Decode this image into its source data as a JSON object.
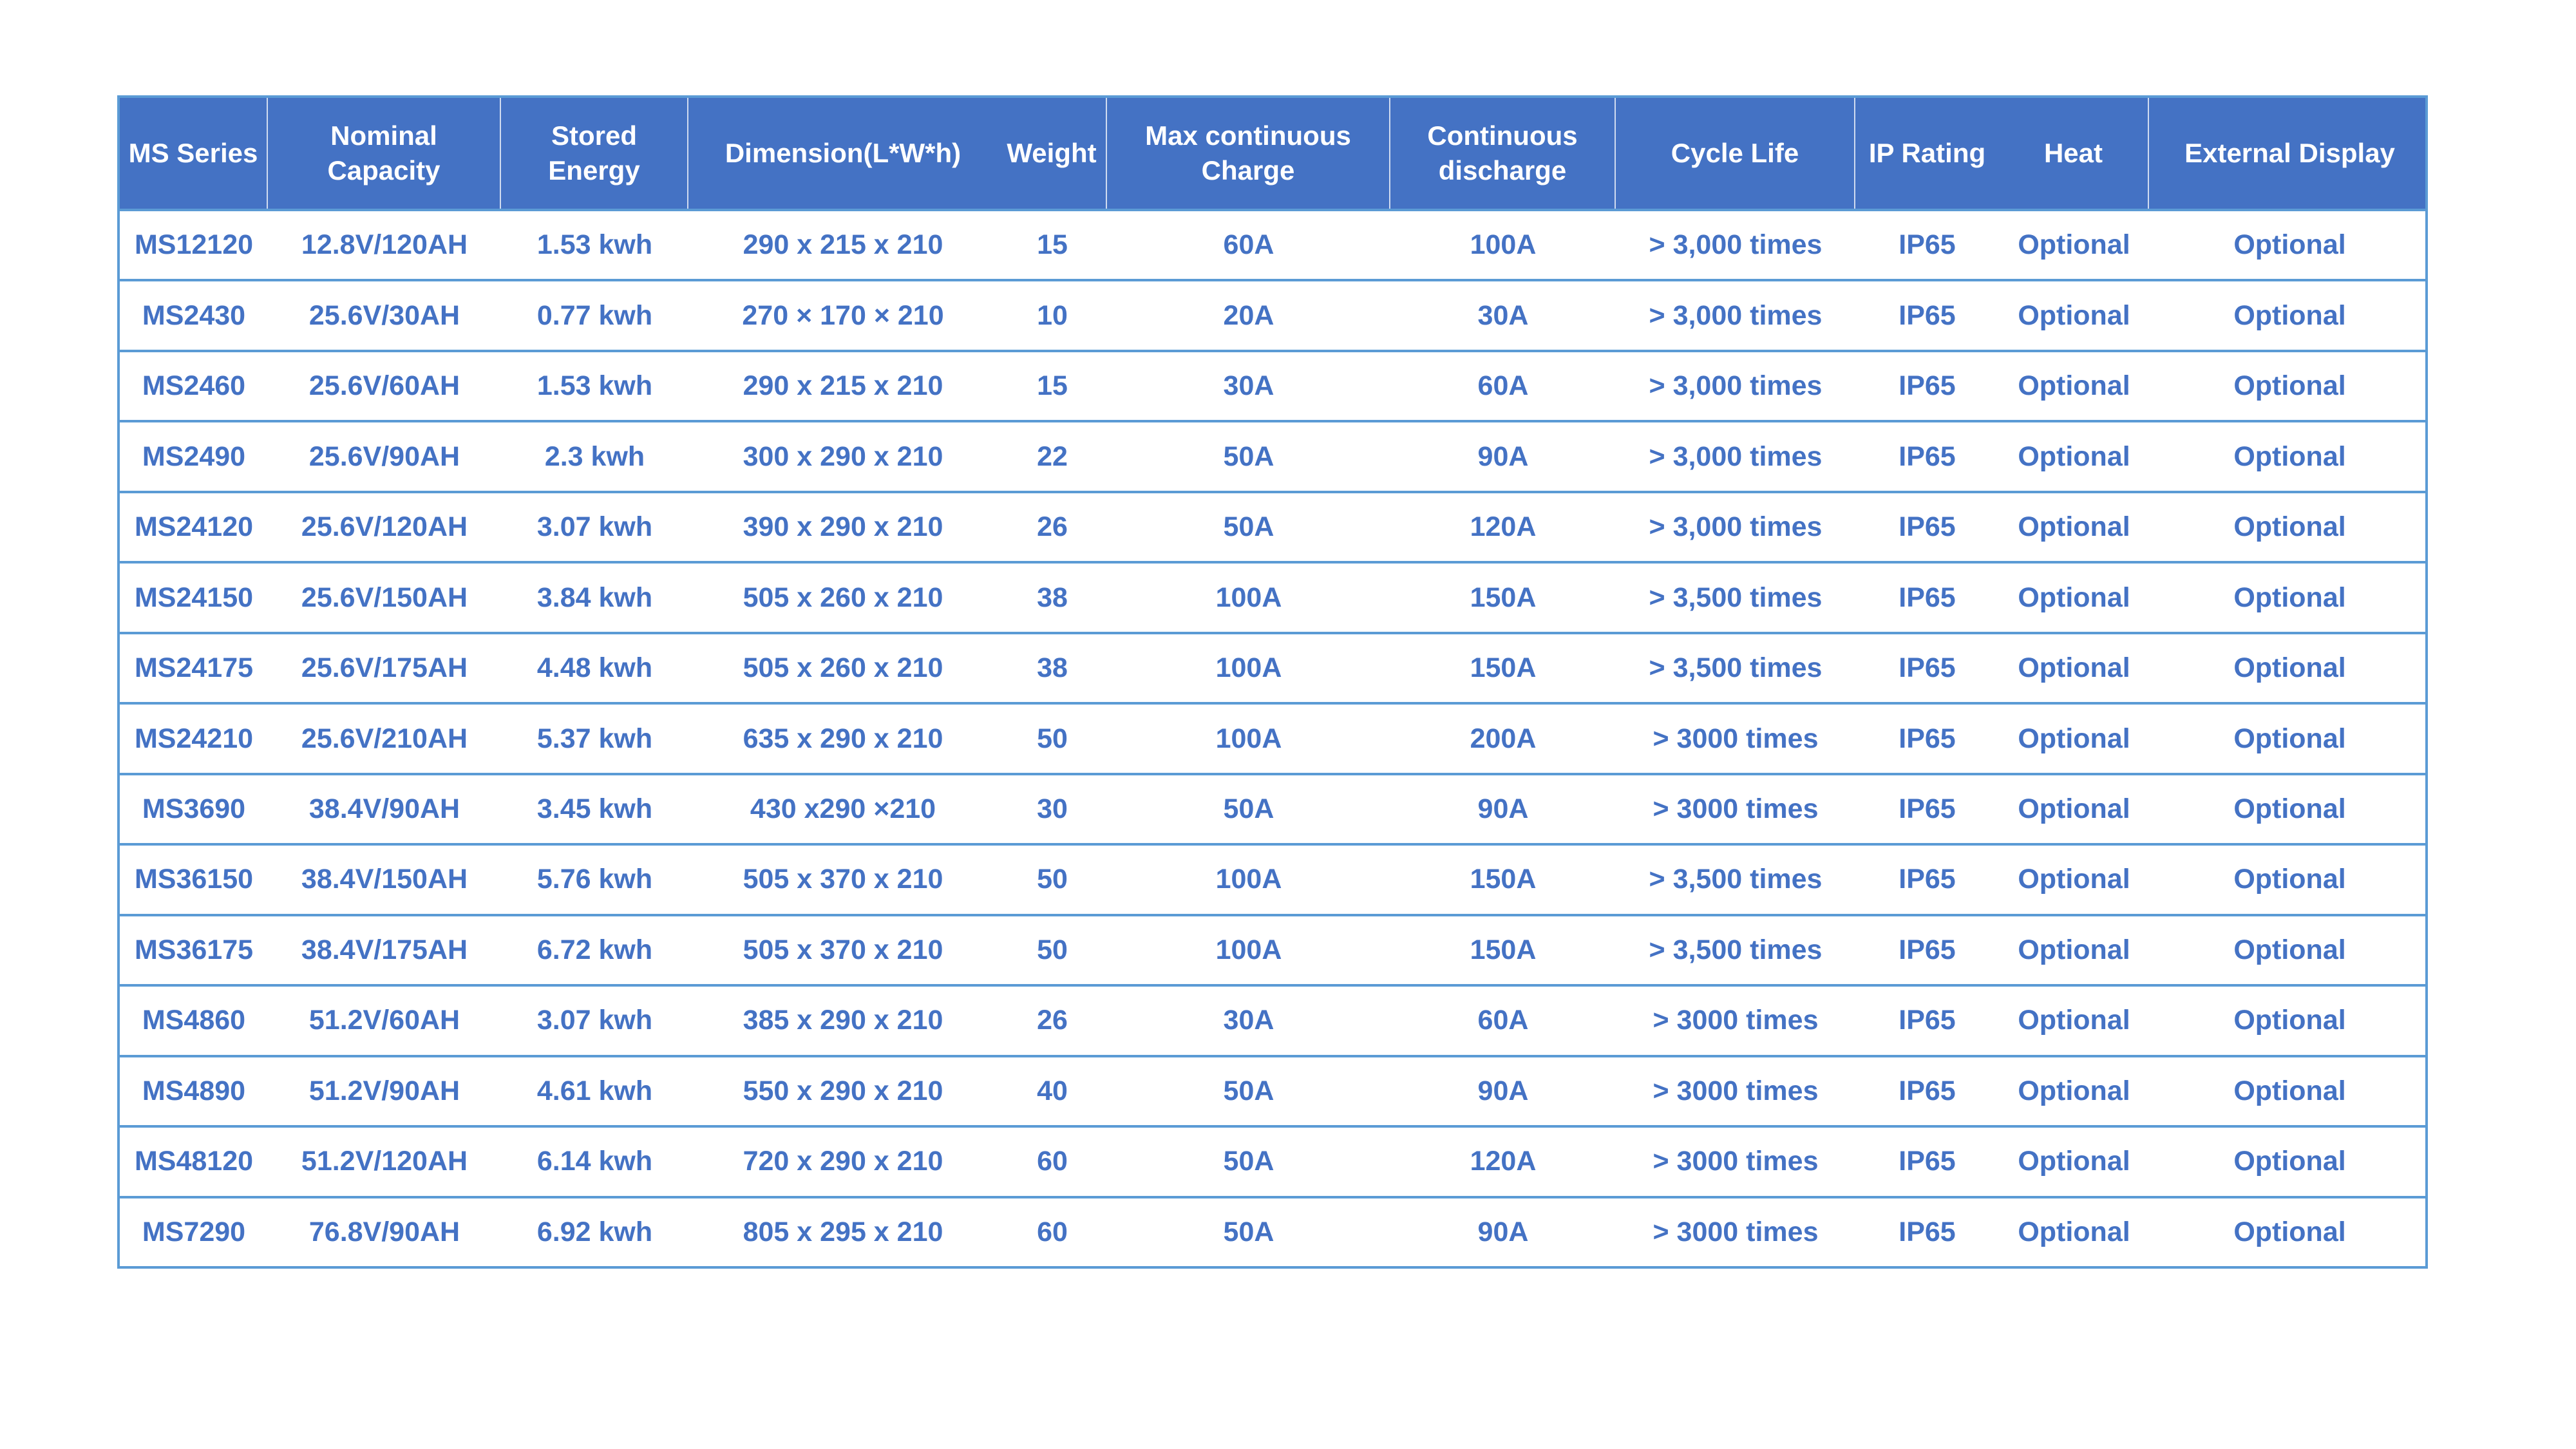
{
  "table": {
    "headers": [
      "MS Series",
      "Nominal Capacity",
      "Stored Energy",
      "Dimension(L*W*h)",
      "Weight",
      "Max continuous Charge",
      "Continuous discharge",
      "Cycle Life",
      "IP Rating",
      "Heat",
      "External Display"
    ],
    "rows": [
      [
        "MS12120",
        "12.8V/120AH",
        "1.53 kwh",
        "290 x 215 x 210",
        "15",
        "60A",
        "100A",
        "> 3,000 times",
        "IP65",
        "Optional",
        "Optional"
      ],
      [
        "MS2430",
        "25.6V/30AH",
        "0.77 kwh",
        "270 × 170 × 210",
        "10",
        "20A",
        "30A",
        "> 3,000 times",
        "IP65",
        "Optional",
        "Optional"
      ],
      [
        "MS2460",
        "25.6V/60AH",
        "1.53 kwh",
        "290 x 215 x 210",
        "15",
        "30A",
        "60A",
        "> 3,000 times",
        "IP65",
        "Optional",
        "Optional"
      ],
      [
        "MS2490",
        "25.6V/90AH",
        "2.3 kwh",
        "300 x 290 x 210",
        "22",
        "50A",
        "90A",
        "> 3,000 times",
        "IP65",
        "Optional",
        "Optional"
      ],
      [
        "MS24120",
        "25.6V/120AH",
        "3.07 kwh",
        "390 x 290 x 210",
        "26",
        "50A",
        "120A",
        "> 3,000 times",
        "IP65",
        "Optional",
        "Optional"
      ],
      [
        "MS24150",
        "25.6V/150AH",
        "3.84 kwh",
        "505 x 260 x 210",
        "38",
        "100A",
        "150A",
        "> 3,500 times",
        "IP65",
        "Optional",
        "Optional"
      ],
      [
        "MS24175",
        "25.6V/175AH",
        "4.48 kwh",
        "505 x 260 x 210",
        "38",
        "100A",
        "150A",
        "> 3,500 times",
        "IP65",
        "Optional",
        "Optional"
      ],
      [
        "MS24210",
        "25.6V/210AH",
        "5.37 kwh",
        "635 x 290 x 210",
        "50",
        "100A",
        "200A",
        "> 3000 times",
        "IP65",
        "Optional",
        "Optional"
      ],
      [
        "MS3690",
        "38.4V/90AH",
        "3.45 kwh",
        "430 x290 ×210",
        "30",
        "50A",
        "90A",
        "> 3000 times",
        "IP65",
        "Optional",
        "Optional"
      ],
      [
        "MS36150",
        "38.4V/150AH",
        "5.76 kwh",
        "505 x 370 x 210",
        "50",
        "100A",
        "150A",
        "> 3,500 times",
        "IP65",
        "Optional",
        "Optional"
      ],
      [
        "MS36175",
        "38.4V/175AH",
        "6.72 kwh",
        "505 x 370 x 210",
        "50",
        "100A",
        "150A",
        "> 3,500 times",
        "IP65",
        "Optional",
        "Optional"
      ],
      [
        "MS4860",
        "51.2V/60AH",
        "3.07 kwh",
        "385 x 290 x 210",
        "26",
        "30A",
        "60A",
        "> 3000 times",
        "IP65",
        "Optional",
        "Optional"
      ],
      [
        "MS4890",
        "51.2V/90AH",
        "4.61 kwh",
        "550 x 290 x 210",
        "40",
        "50A",
        "90A",
        "> 3000 times",
        "IP65",
        "Optional",
        "Optional"
      ],
      [
        "MS48120",
        "51.2V/120AH",
        "6.14 kwh",
        "720 x 290 x 210",
        "60",
        "50A",
        "120A",
        "> 3000 times",
        "IP65",
        "Optional",
        "Optional"
      ],
      [
        "MS7290",
        "76.8V/90AH",
        "6.92 kwh",
        "805 x 295 x 210",
        "60",
        "50A",
        "90A",
        "> 3000 times",
        "IP65",
        "Optional",
        "Optional"
      ]
    ]
  },
  "colors": {
    "header_background": "#4472C4",
    "header_text": "#FFFFFF",
    "body_text": "#4472C4",
    "grid_border": "#5B9BD5",
    "page_background": "#FFFFFF"
  }
}
